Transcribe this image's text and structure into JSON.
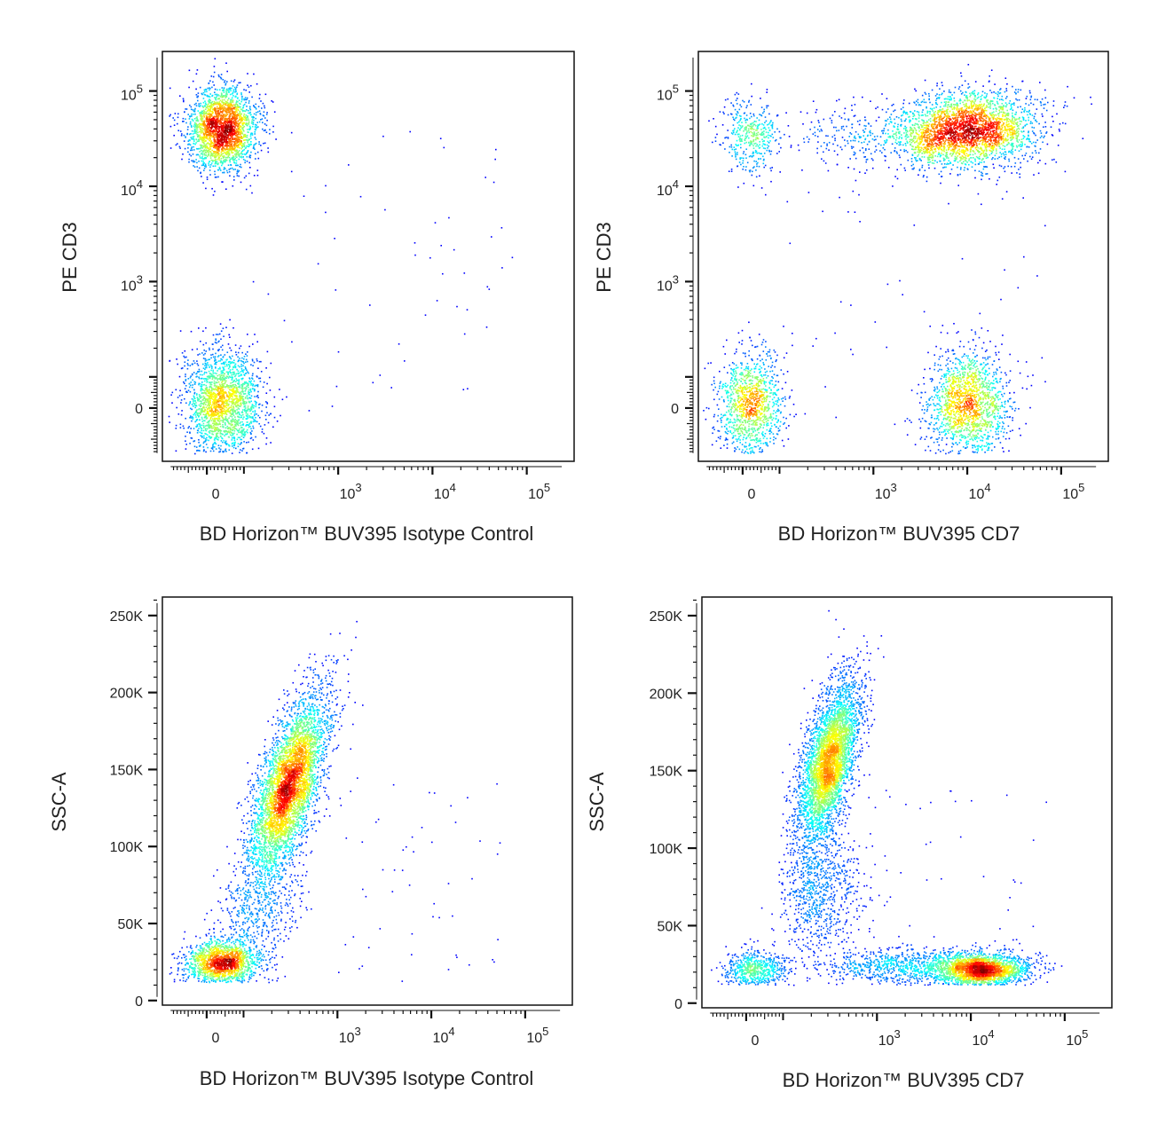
{
  "chart_data": [
    {
      "type": "scatter",
      "panel": "top-left",
      "xlabel": "BD Horizon™ BUV395 Isotype Control",
      "ylabel": "PE CD3",
      "x_scale": "biexponential",
      "y_scale": "biexponential",
      "x_ticks": [
        "0",
        "10^3",
        "10^4",
        "10^5"
      ],
      "y_ticks": [
        "0",
        "10^3",
        "10^4",
        "10^5"
      ],
      "coloring": "density (blue → green → yellow → red)",
      "populations": [
        {
          "x": 40,
          "y": 40000,
          "events": 3000
        },
        {
          "x": 40,
          "y": 20,
          "events": 2500
        }
      ],
      "sparse_outliers": 60
    },
    {
      "type": "scatter",
      "panel": "top-right",
      "xlabel": "BD Horizon™ BUV395 CD7",
      "ylabel": "PE CD3",
      "x_scale": "biexponential",
      "y_scale": "biexponential",
      "x_ticks": [
        "0",
        "10^3",
        "10^4",
        "10^5"
      ],
      "y_ticks": [
        "0",
        "10^3",
        "10^4",
        "10^5"
      ],
      "coloring": "density (blue → green → yellow → red)",
      "populations": [
        {
          "x": 20,
          "y": 35000,
          "events": 500
        },
        {
          "x": 10000,
          "y": 40000,
          "events": 3500
        },
        {
          "x": 1000,
          "y": 35000,
          "events": 400
        },
        {
          "x": 20,
          "y": 10,
          "events": 1500
        },
        {
          "x": 10000,
          "y": 10,
          "events": 2000
        }
      ],
      "sparse_outliers": 60
    },
    {
      "type": "scatter",
      "panel": "bottom-left",
      "xlabel": "BD Horizon™ BUV395 Isotype Control",
      "ylabel": "SSC-A",
      "x_scale": "biexponential",
      "y_scale": "linear",
      "ylim": [
        0,
        262000
      ],
      "x_ticks": [
        "0",
        "10^3",
        "10^4",
        "10^5"
      ],
      "y_ticks": [
        "0",
        "50K",
        "100K",
        "150K",
        "200K",
        "250K"
      ],
      "coloring": "density (blue → green → yellow → red)",
      "populations": [
        {
          "x": 40,
          "y": 25000,
          "events": 2000
        },
        {
          "x": 300,
          "y": 140000,
          "events": 5500
        },
        {
          "x": 150,
          "y": 60000,
          "events": 600
        }
      ],
      "sparse_outliers": 70
    },
    {
      "type": "scatter",
      "panel": "bottom-right",
      "xlabel": "BD Horizon™ BUV395 CD7",
      "ylabel": "SSC-A",
      "x_scale": "biexponential",
      "y_scale": "linear",
      "ylim": [
        0,
        262000
      ],
      "x_ticks": [
        "0",
        "10^3",
        "10^4",
        "10^5"
      ],
      "y_ticks": [
        "0",
        "50K",
        "100K",
        "150K",
        "200K",
        "250K"
      ],
      "coloring": "density (blue → green → yellow → red)",
      "populations": [
        {
          "x": 20,
          "y": 22000,
          "events": 800
        },
        {
          "x": 300,
          "y": 155000,
          "events": 5000
        },
        {
          "x": 250,
          "y": 70000,
          "events": 900
        },
        {
          "x": 12000,
          "y": 22000,
          "events": 3000
        },
        {
          "x": 1500,
          "y": 24000,
          "events": 900
        }
      ],
      "sparse_outliers": 60
    }
  ]
}
